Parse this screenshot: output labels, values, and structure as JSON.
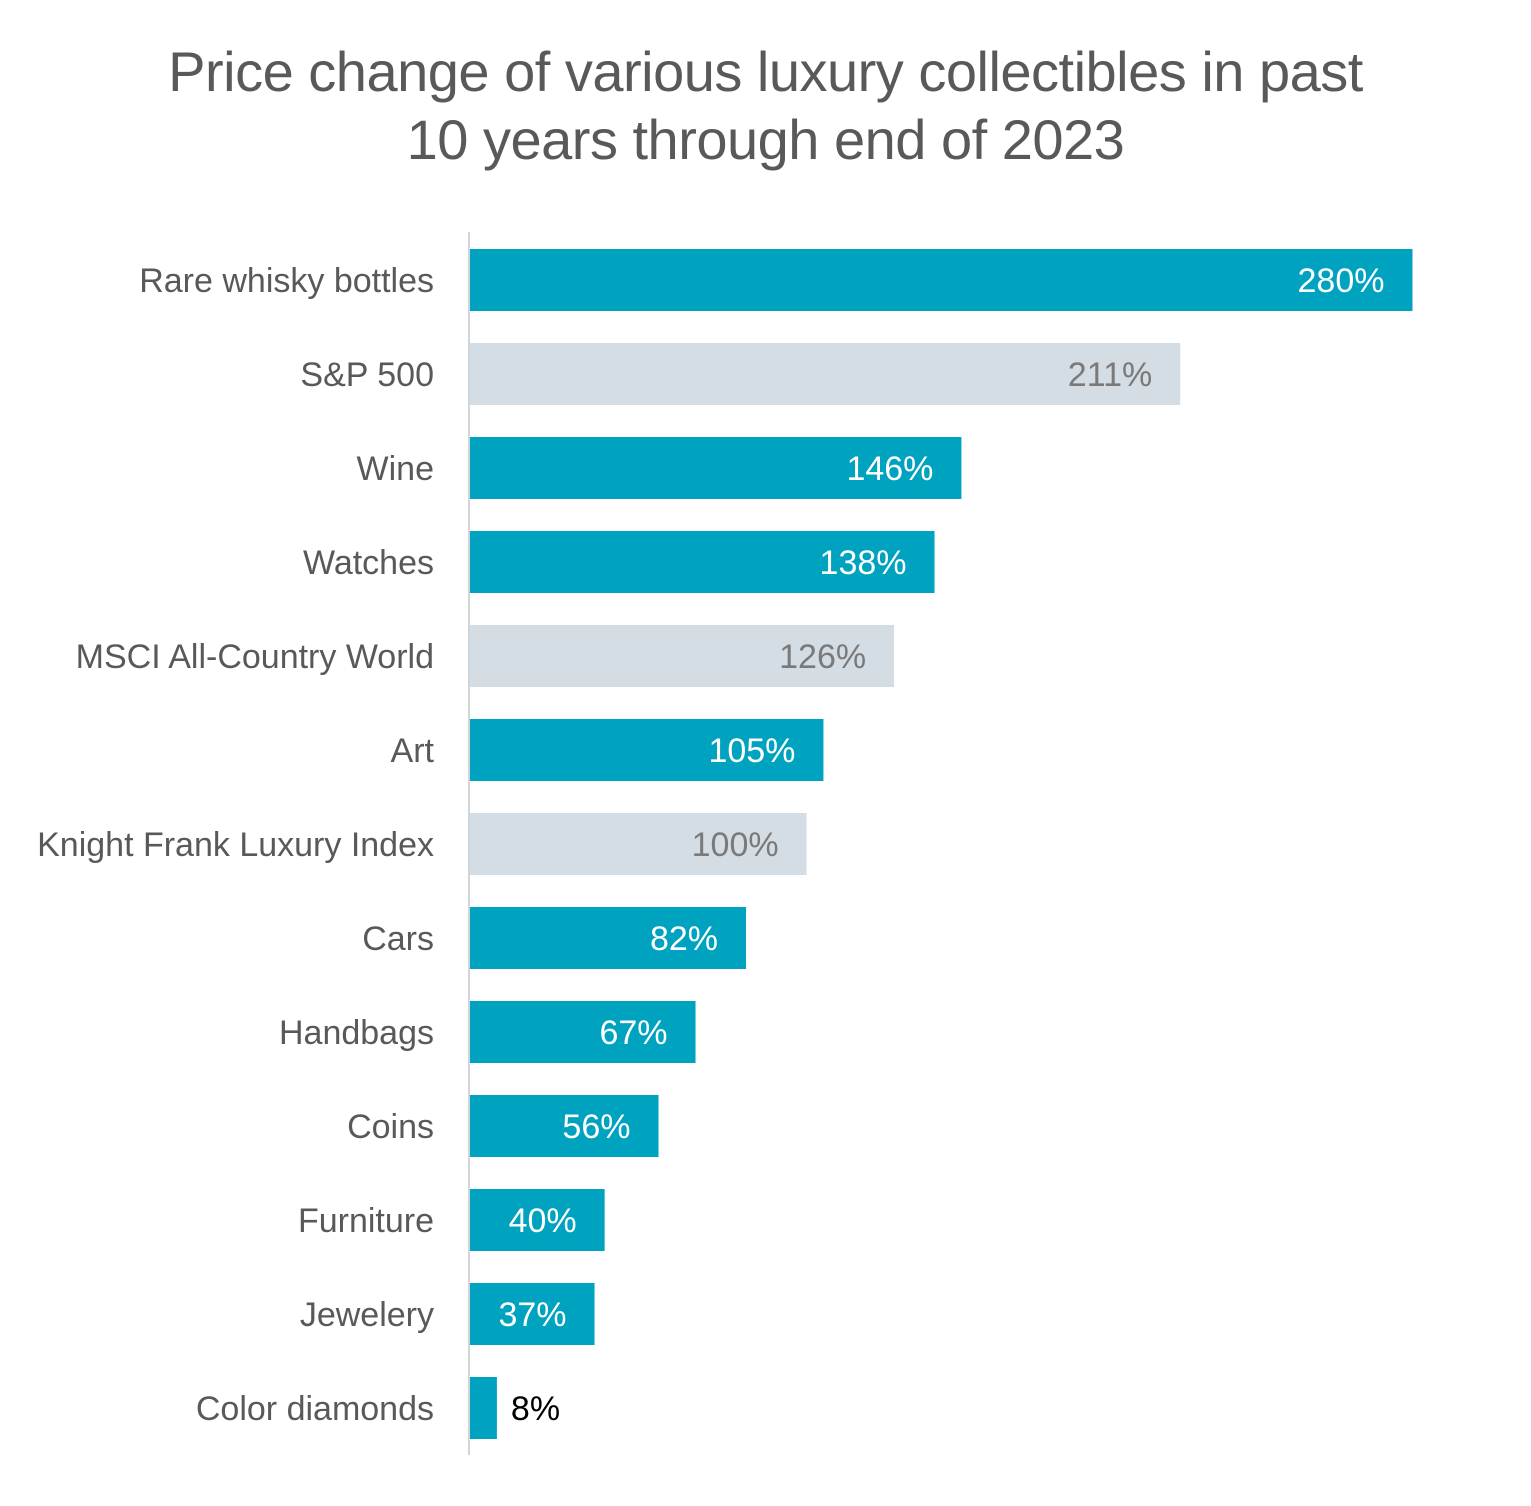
{
  "chart_data": {
    "type": "bar",
    "orientation": "horizontal",
    "title": [
      "Price change of various luxury collectibles in past",
      "10 years through end of 2023"
    ],
    "categories": [
      "Rare whisky bottles",
      "S&P 500",
      "Wine",
      "Watches",
      "MSCI All-Country World",
      "Art",
      "Knight Frank Luxury Index",
      "Cars",
      "Handbags",
      "Coins",
      "Furniture",
      "Jewelery",
      "Color diamonds"
    ],
    "values": [
      280,
      211,
      146,
      138,
      126,
      105,
      100,
      82,
      67,
      56,
      40,
      37,
      8
    ],
    "value_labels": [
      "280%",
      "211%",
      "146%",
      "138%",
      "126%",
      "105%",
      "100%",
      "82%",
      "67%",
      "56%",
      "40%",
      "37%",
      "8%"
    ],
    "is_benchmark": [
      false,
      true,
      false,
      false,
      true,
      false,
      true,
      false,
      false,
      false,
      false,
      false,
      false
    ],
    "unit": "%",
    "xlim": [
      0,
      290
    ],
    "grid": false,
    "legend": "none",
    "colors": {
      "collectible": "#00a3bf",
      "benchmark": "#d4dde4",
      "label_on_collectible": "#ffffff",
      "label_on_benchmark": "#7a7a7a",
      "label_outside": "#000000",
      "category_text": "#58595b",
      "axis_line": "#d0d5da",
      "title_text": "#58595b"
    }
  }
}
